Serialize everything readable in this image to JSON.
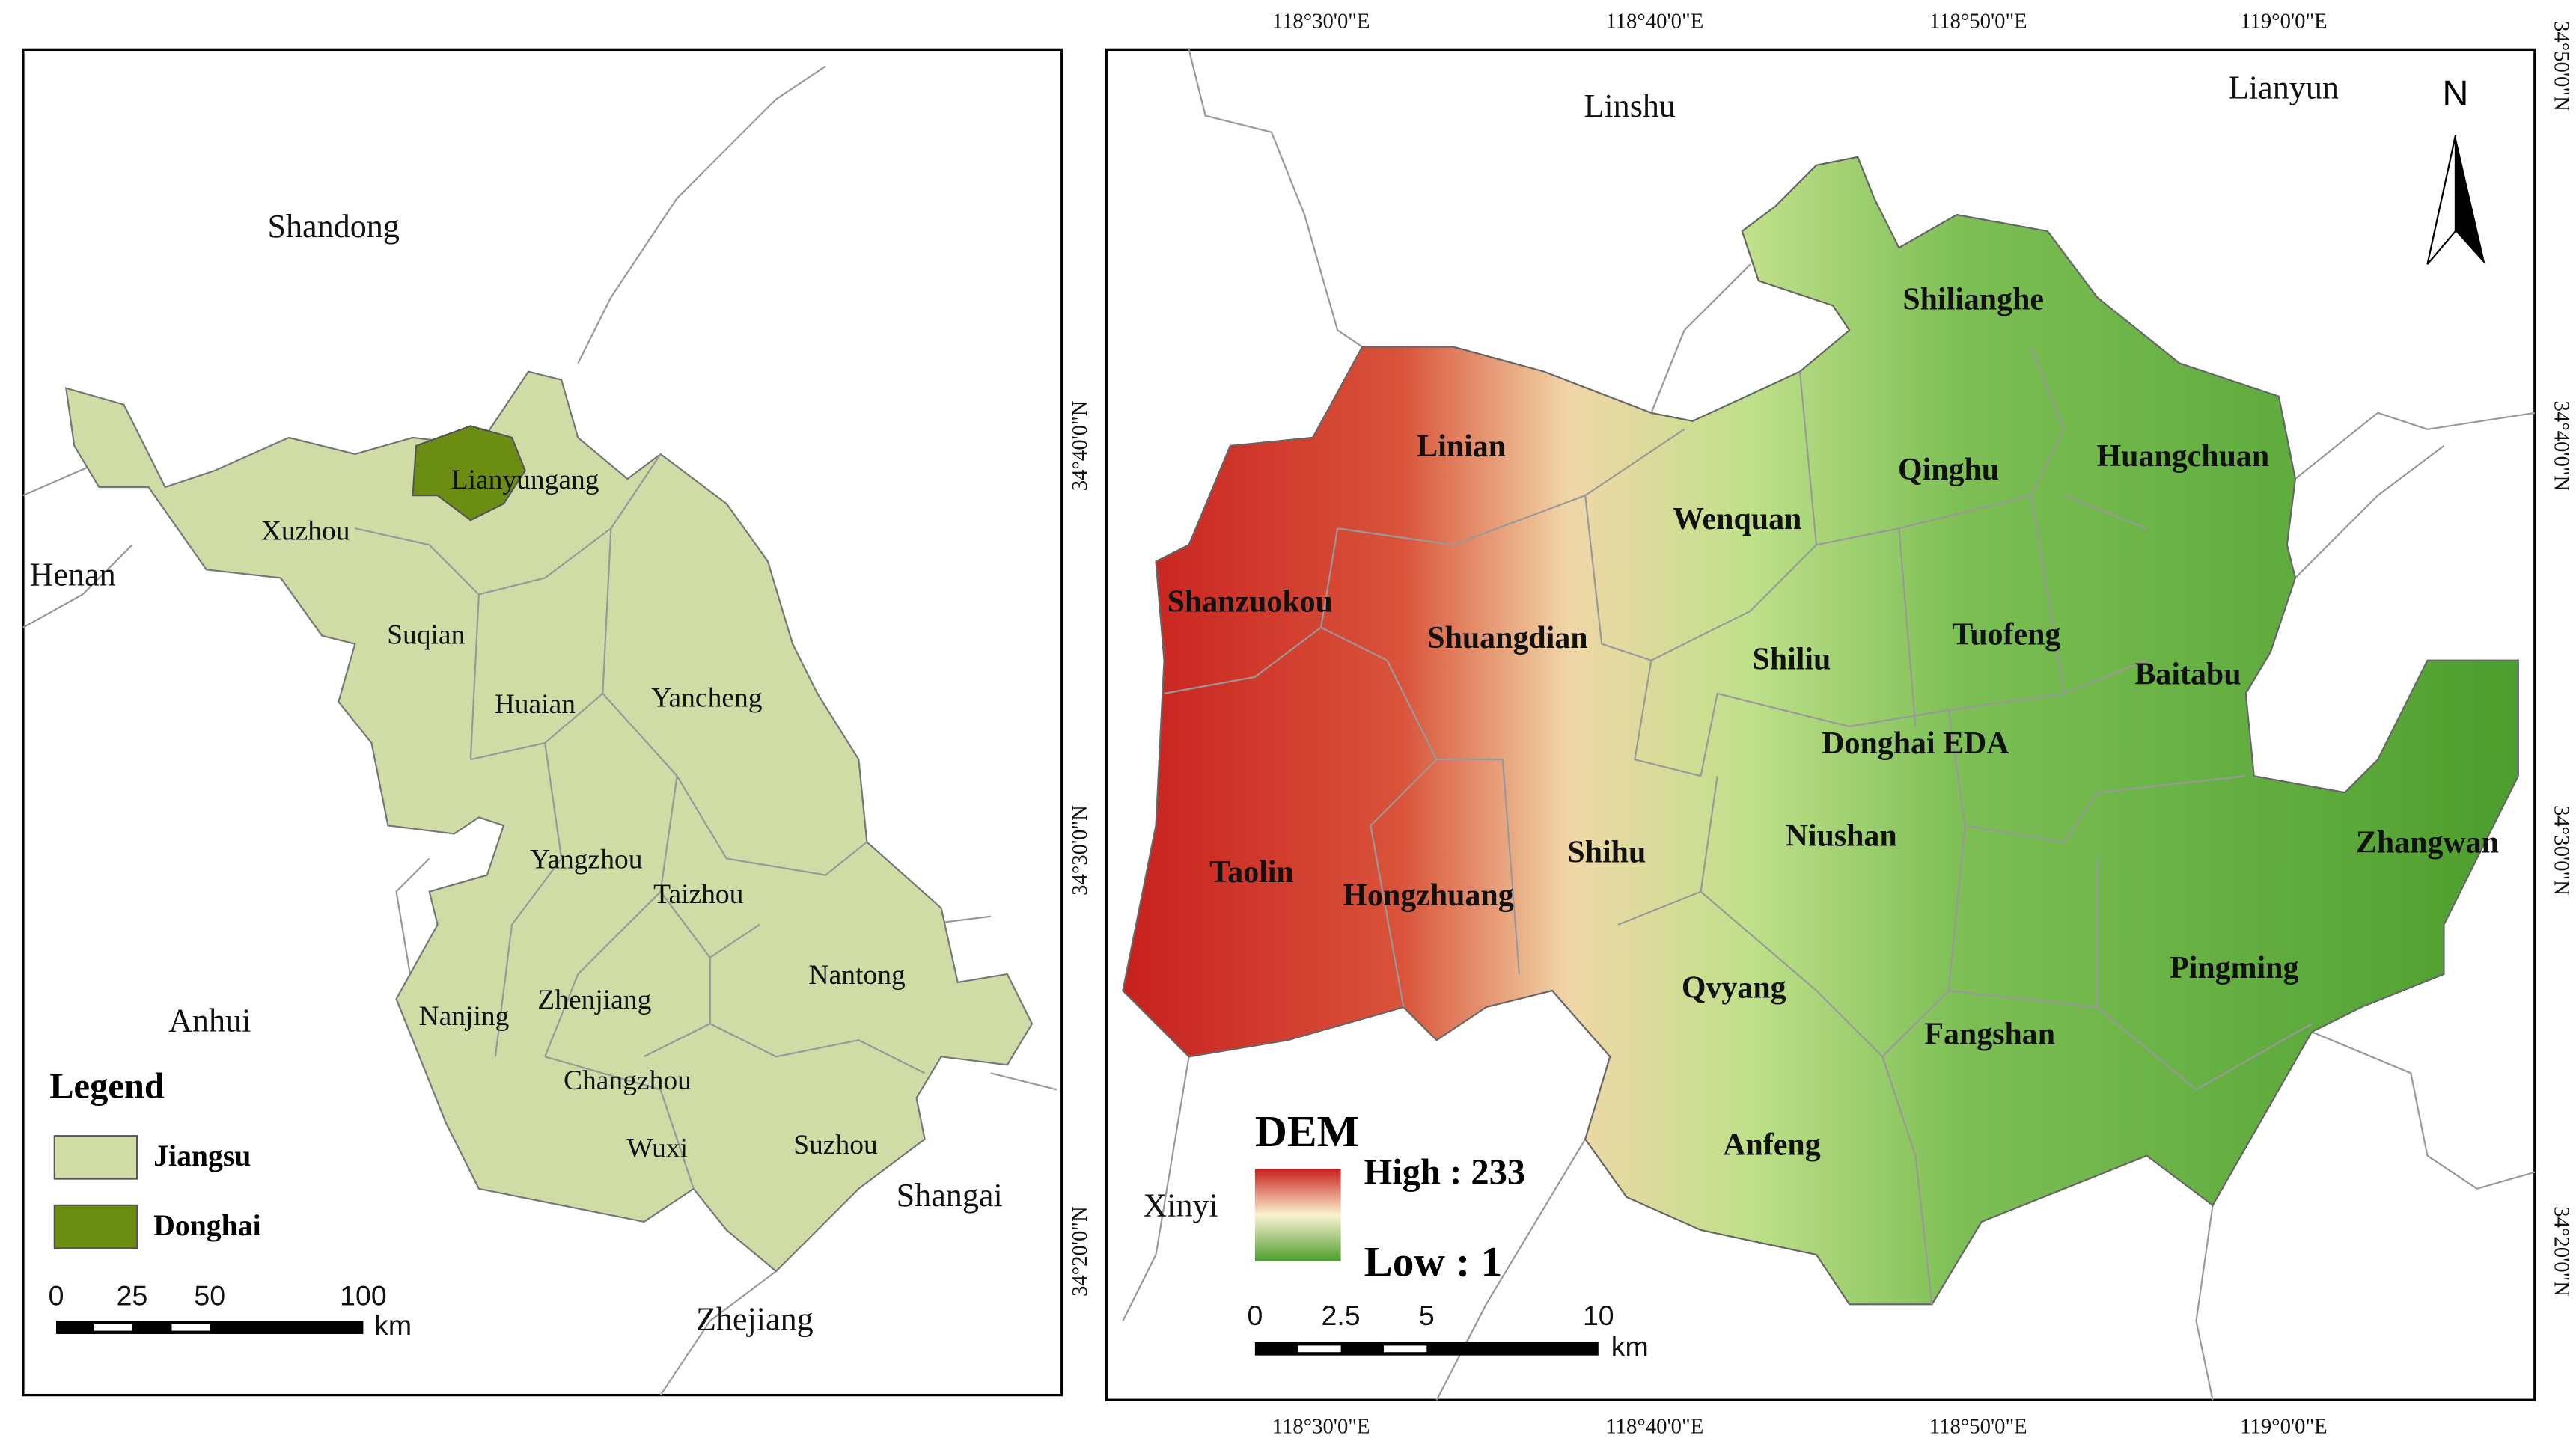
{
  "left_map": {
    "regions": [
      "Shandong",
      "Henan",
      "Anhui",
      "Shangai",
      "Zhejiang"
    ],
    "cities": [
      "Lianyungang",
      "Xuzhou",
      "Suqian",
      "Huaian",
      "Yancheng",
      "Yangzhou",
      "Taizhou",
      "Nantong",
      "Nanjing",
      "Zhenjiang",
      "Changzhou",
      "Wuxi",
      "Suzhou"
    ],
    "legend": {
      "title": "Legend",
      "items": [
        "Jiangsu",
        "Donghai"
      ]
    },
    "scale_bar": {
      "labels": [
        "0",
        "25",
        "50",
        "100"
      ],
      "unit": "km"
    }
  },
  "right_map": {
    "neighbors": [
      "Linshu",
      "Lianyun",
      "Xinyi"
    ],
    "towns": [
      "Shilianghe",
      "Linian",
      "Qinghu",
      "Huangchuan",
      "Wenquan",
      "Shanzuokou",
      "Shuangdian",
      "Tuofeng",
      "Shiliu",
      "Baitabu",
      "Donghai EDA",
      "Niushan",
      "Zhangwan",
      "Taolin",
      "Hongzhuang",
      "Shihu",
      "Qvyang",
      "Pingming",
      "Fangshan",
      "Anfeng"
    ],
    "north_arrow": "N",
    "longitudes_top": [
      "118°30'0\"E",
      "118°40'0\"E",
      "118°50'0\"E",
      "119°0'0\"E"
    ],
    "longitudes_bottom": [
      "118°30'0\"E",
      "118°40'0\"E",
      "118°50'0\"E",
      "119°0'0\"E"
    ],
    "latitudes_left": [
      "34°40'0\"N",
      "34°30'0\"N",
      "34°20'0\"N"
    ],
    "latitudes_right": [
      "34°50'0\"N",
      "34°40'0\"N",
      "34°30'0\"N",
      "34°20'0\"N"
    ],
    "dem_legend": {
      "title": "DEM",
      "high": "High : 233",
      "low": "Low : 1"
    },
    "scale_bar": {
      "labels": [
        "0",
        "2.5",
        "5",
        "10"
      ],
      "unit": "km"
    }
  }
}
